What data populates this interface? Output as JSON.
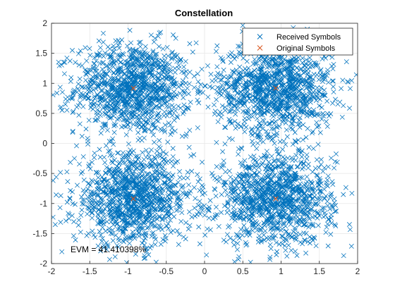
{
  "chart_data": {
    "type": "scatter",
    "title": "Constellation",
    "xlabel": "",
    "ylabel": "",
    "xlim": [
      -2,
      2
    ],
    "ylim": [
      -2,
      2
    ],
    "xticks": [
      "-2",
      "-1.5",
      "-1",
      "-0.5",
      "0",
      "0.5",
      "1",
      "1.5",
      "2"
    ],
    "yticks": [
      "2",
      "1.5",
      "1",
      "0.5",
      "0",
      "-0.5",
      "-1",
      "-1.5",
      "-2"
    ],
    "grid": true,
    "legend_position": "top-right",
    "series": [
      {
        "name": "Received Symbols",
        "marker": "x",
        "color": "#0072BD",
        "distribution": "noisy QPSK clusters around the original symbol points",
        "centers": [
          [
            -0.93,
            0.92
          ],
          [
            0.93,
            0.92
          ],
          [
            -0.93,
            -0.92
          ],
          [
            0.93,
            -0.92
          ]
        ],
        "spread_std": 0.38
      },
      {
        "name": "Original Symbols",
        "marker": "x",
        "color": "#D95319",
        "points": [
          [
            -0.93,
            0.92
          ],
          [
            0.93,
            0.92
          ],
          [
            -0.93,
            -0.92
          ],
          [
            0.93,
            -0.92
          ]
        ]
      }
    ],
    "annotation": "EVM = 41.410398%"
  }
}
